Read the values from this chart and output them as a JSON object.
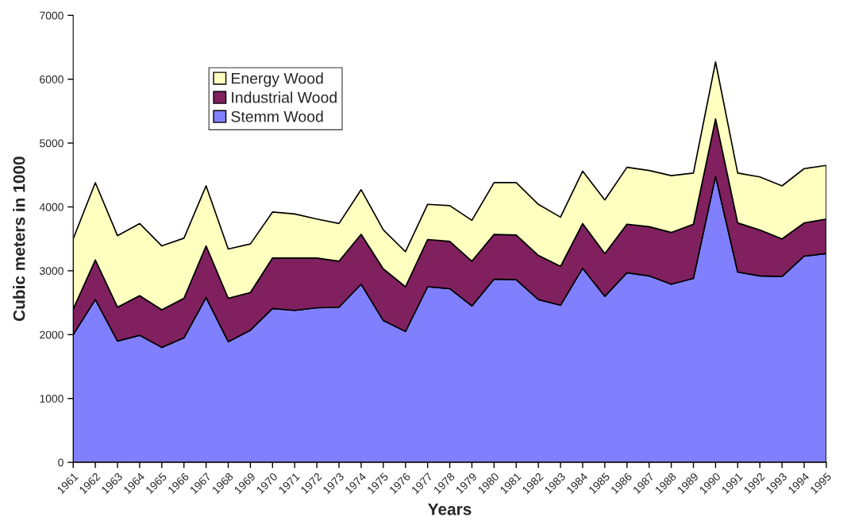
{
  "chart_data": {
    "type": "area",
    "stacked": true,
    "xlabel": "Years",
    "ylabel": "Cubic meters in 1000",
    "categories": [
      "1961",
      "1962",
      "1963",
      "1964",
      "1965",
      "1966",
      "1967",
      "1968",
      "1969",
      "1970",
      "1971",
      "1972",
      "1973",
      "1974",
      "1975",
      "1976",
      "1977",
      "1978",
      "1979",
      "1980",
      "1981",
      "1982",
      "1983",
      "1984",
      "1985",
      "1986",
      "1987",
      "1988",
      "1989",
      "1990",
      "1991",
      "1992",
      "1993",
      "1994",
      "1995"
    ],
    "series": [
      {
        "name": "Stemm Wood",
        "color": "#8080ff",
        "values": [
          2000,
          2550,
          1900,
          1990,
          1800,
          1950,
          2580,
          1890,
          2070,
          2410,
          2380,
          2420,
          2430,
          2790,
          2220,
          2050,
          2750,
          2720,
          2450,
          2870,
          2860,
          2550,
          2460,
          3040,
          2600,
          2970,
          2920,
          2790,
          2880,
          4480,
          2980,
          2920,
          2910,
          3230,
          3270
        ]
      },
      {
        "name": "Industrial Wood",
        "color": "#80205f",
        "values": [
          400,
          620,
          530,
          620,
          590,
          620,
          810,
          680,
          590,
          790,
          820,
          780,
          720,
          780,
          810,
          700,
          740,
          740,
          700,
          700,
          700,
          690,
          610,
          700,
          670,
          760,
          770,
          810,
          850,
          900,
          770,
          720,
          590,
          520,
          540
        ]
      },
      {
        "name": "Energy Wood",
        "color": "#ffffc0",
        "values": [
          1100,
          1210,
          1120,
          1130,
          1000,
          940,
          940,
          770,
          760,
          720,
          690,
          610,
          590,
          700,
          610,
          550,
          550,
          560,
          640,
          810,
          820,
          800,
          770,
          820,
          840,
          890,
          880,
          890,
          800,
          890,
          780,
          830,
          830,
          850,
          840
        ]
      }
    ],
    "ylim": [
      0,
      7000
    ],
    "yticks": [
      0,
      1000,
      2000,
      3000,
      4000,
      5000,
      6000,
      7000
    ],
    "grid": false,
    "legend": "top left"
  }
}
